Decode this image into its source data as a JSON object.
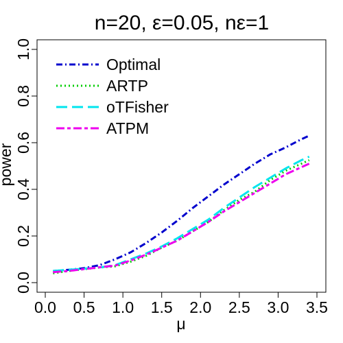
{
  "chart_data": {
    "type": "line",
    "title": "n=20, ε=0.05, nε=1",
    "xlabel": "μ",
    "ylabel": "power",
    "xlim": [
      0,
      3.5
    ],
    "ylim": [
      0,
      1.0
    ],
    "xticks": [
      0.0,
      0.5,
      1.0,
      1.5,
      2.0,
      2.5,
      3.0,
      3.5
    ],
    "xtick_labels": [
      "0.0",
      "0.5",
      "1.0",
      "1.5",
      "2.0",
      "2.5",
      "3.0",
      "3.5"
    ],
    "yticks": [
      0.0,
      0.2,
      0.4,
      0.6,
      0.8,
      1.0
    ],
    "ytick_labels": [
      "0.0",
      "0.2",
      "0.4",
      "0.6",
      "0.8",
      "1.0"
    ],
    "grid": false,
    "legend_position": "top-left",
    "x": [
      0.1,
      0.3,
      0.5,
      0.7,
      0.9,
      1.1,
      1.3,
      1.5,
      1.7,
      1.9,
      2.1,
      2.3,
      2.5,
      2.7,
      2.9,
      3.1,
      3.3,
      3.4
    ],
    "series": [
      {
        "name": "Optimal",
        "color": "#0000CD",
        "dash": "dashdot",
        "values": [
          0.05,
          0.055,
          0.062,
          0.075,
          0.1,
          0.13,
          0.17,
          0.215,
          0.265,
          0.32,
          0.37,
          0.42,
          0.465,
          0.51,
          0.55,
          0.58,
          0.615,
          0.63
        ]
      },
      {
        "name": "ARTP",
        "color": "#00CD00",
        "dash": "dotted",
        "values": [
          0.04,
          0.05,
          0.058,
          0.065,
          0.07,
          0.09,
          0.115,
          0.15,
          0.18,
          0.22,
          0.26,
          0.31,
          0.355,
          0.39,
          0.44,
          0.48,
          0.51,
          0.525
        ]
      },
      {
        "name": "oTFisher",
        "color": "#00E5EE",
        "dash": "longdash",
        "values": [
          0.05,
          0.055,
          0.06,
          0.065,
          0.075,
          0.1,
          0.125,
          0.155,
          0.19,
          0.23,
          0.27,
          0.32,
          0.365,
          0.41,
          0.45,
          0.49,
          0.525,
          0.54
        ]
      },
      {
        "name": "ATPM",
        "color": "#EE00EE",
        "dash": "twodash",
        "values": [
          0.045,
          0.05,
          0.058,
          0.066,
          0.073,
          0.095,
          0.12,
          0.15,
          0.18,
          0.22,
          0.26,
          0.305,
          0.345,
          0.385,
          0.425,
          0.465,
          0.495,
          0.51
        ]
      }
    ]
  }
}
